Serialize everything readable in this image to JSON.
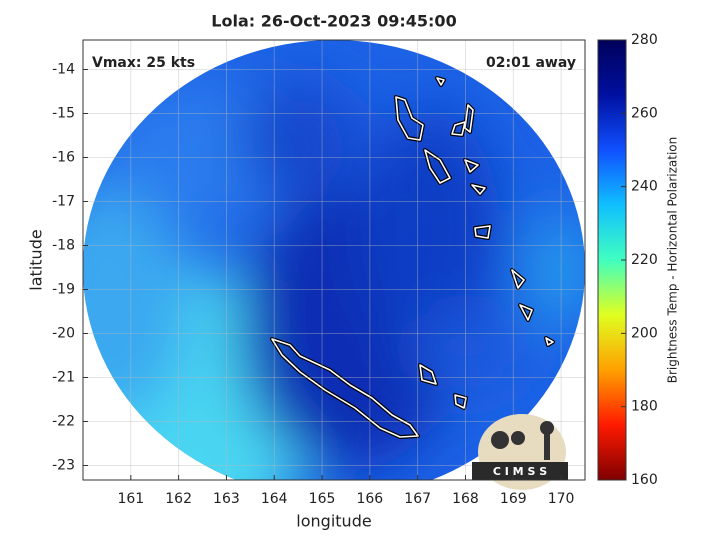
{
  "chart_data": {
    "type": "map",
    "title": "Lola: 26-Oct-2023 09:45:00",
    "annotations": [
      "Vmax: 25 kts",
      "02:01 away"
    ],
    "xlabel": "longitude",
    "ylabel": "latitude",
    "xlim": [
      160,
      170.5
    ],
    "xticks": [
      161,
      162,
      163,
      164,
      165,
      166,
      167,
      168,
      169,
      170
    ],
    "ylim": [
      -23.33,
      -13.33
    ],
    "yticks": [
      -23,
      -22,
      -21,
      -20,
      -19,
      -18,
      -17,
      -16,
      -15,
      -14
    ],
    "grid": true,
    "colorbar": {
      "label": "Brightness Temp - Horizontal Polarization",
      "lim": [
        160,
        280
      ],
      "ticks": [
        160,
        180,
        200,
        220,
        240,
        260,
        280
      ],
      "colors": [
        "#7f0000",
        "#ff1a00",
        "#ffa000",
        "#e0ff20",
        "#40ffc0",
        "#10c0ff",
        "#1050ff",
        "#0010a0",
        "#00005a"
      ]
    },
    "logo": "C I M S S"
  }
}
